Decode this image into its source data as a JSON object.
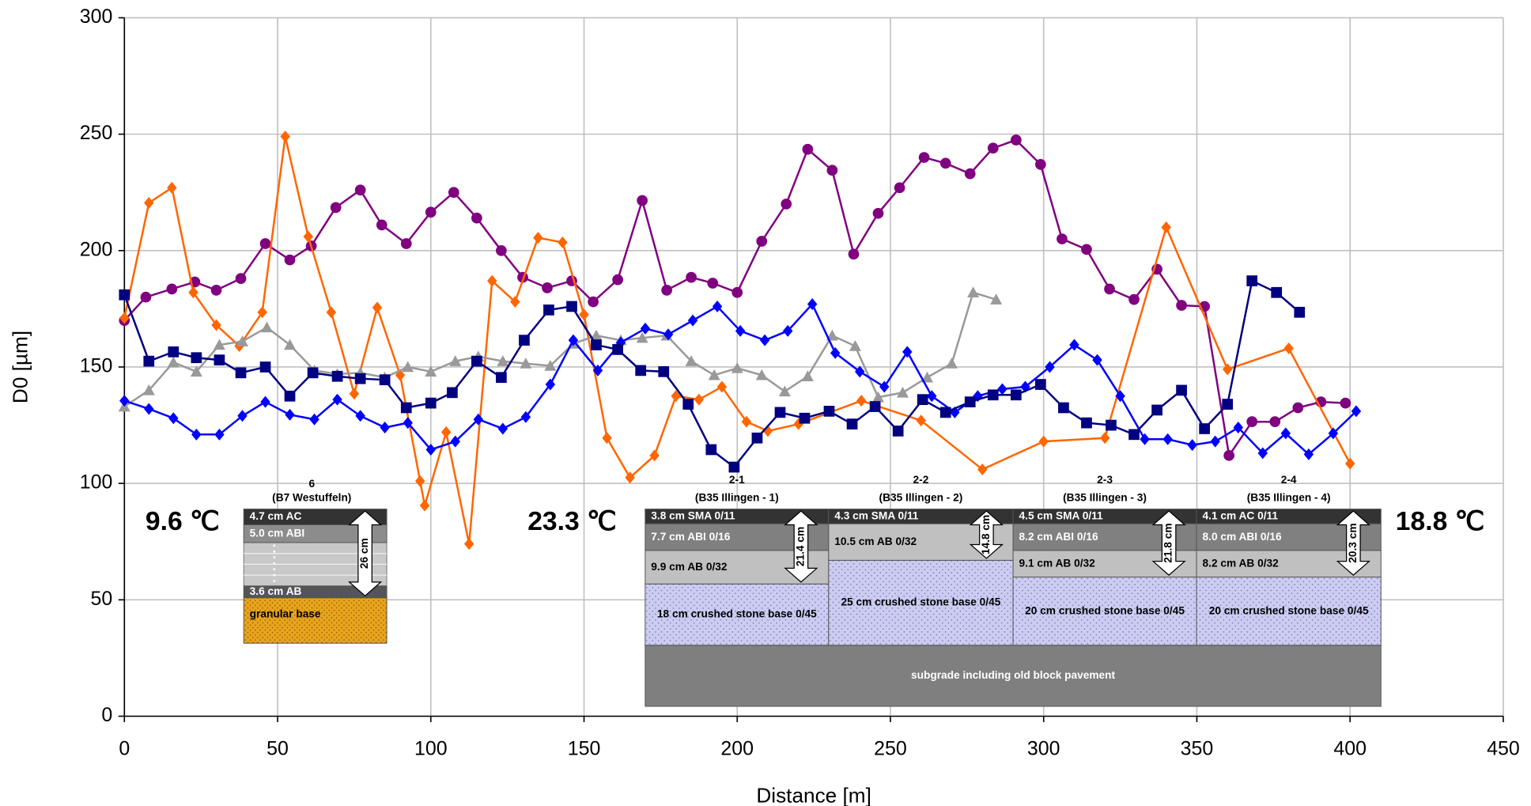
{
  "chart_data": {
    "type": "line",
    "x_label": "Distance [m]",
    "y_label": "D0 [µm]",
    "xlim": [
      0,
      450
    ],
    "ylim": [
      0,
      300
    ],
    "xticks": [
      0,
      50,
      100,
      150,
      200,
      250,
      300,
      350,
      400,
      450
    ],
    "yticks": [
      0,
      50,
      100,
      150,
      200,
      250,
      300
    ],
    "grid": true,
    "series": [
      {
        "color": "#800080",
        "marker": "circle",
        "x": [
          0,
          7,
          15.5,
          23,
          30,
          38,
          46,
          54,
          61,
          69,
          77,
          84,
          92,
          100,
          107.5,
          115,
          123,
          130,
          138,
          146,
          153,
          161,
          169,
          177,
          185,
          192,
          200,
          208,
          216,
          223,
          231,
          238,
          246,
          253,
          261,
          268,
          276,
          283.5,
          291,
          299,
          306,
          314,
          321.5,
          329.5,
          337,
          345,
          352.5,
          360.5,
          368,
          375.5,
          383,
          390.5,
          398.5
        ],
        "values": [
          170,
          180,
          183.5,
          186.5,
          183,
          188,
          203,
          196,
          202,
          218.5,
          226,
          211,
          203,
          216.5,
          225,
          214,
          200,
          188.5,
          184,
          187,
          178,
          187.5,
          221.5,
          183,
          188.5,
          186,
          182,
          204,
          220,
          243.5,
          234.5,
          198.5,
          216,
          227,
          240,
          237.5,
          233,
          244,
          247.5,
          237,
          205,
          200.5,
          183.5,
          179,
          192,
          176.5,
          176,
          112,
          126.5,
          126.5,
          132.5,
          135,
          134.5
        ]
      },
      {
        "color": "#ff6600",
        "marker": "diamond",
        "x": [
          0,
          8,
          15.5,
          22.5,
          30,
          37.5,
          45,
          52.5,
          60,
          67.5,
          75,
          82.5,
          90,
          96.5,
          98,
          105,
          112.5,
          120,
          127.5,
          135,
          143,
          150,
          157.5,
          165,
          173,
          180,
          187.5,
          195,
          203,
          210,
          220,
          240.5,
          260,
          280,
          300,
          320,
          340,
          360,
          380,
          400
        ],
        "values": [
          171,
          220.5,
          227,
          182,
          168,
          159,
          173.5,
          249,
          206,
          173.5,
          138.5,
          175.5,
          146.5,
          101,
          90.5,
          122,
          74,
          187,
          178,
          205.5,
          203.5,
          172.5,
          119.5,
          102.5,
          112,
          137.5,
          136,
          141.5,
          126.5,
          122.5,
          125.5,
          135.5,
          127,
          106,
          118,
          119.5,
          210,
          149,
          158,
          108.5
        ]
      },
      {
        "color": "#999999",
        "marker": "triangle",
        "x": [
          0,
          8,
          16,
          23.5,
          31,
          38.5,
          46.5,
          54,
          62,
          69.5,
          77,
          85,
          92.5,
          100,
          108,
          115.5,
          123.5,
          131,
          139,
          146.5,
          154,
          162,
          169,
          177,
          185,
          192.5,
          200,
          208,
          215.5,
          223,
          231,
          238.5,
          246,
          254,
          262,
          270,
          277,
          284.5
        ],
        "values": [
          133,
          140,
          152,
          148,
          159.5,
          161,
          167,
          159.5,
          148.5,
          147,
          147.5,
          145.5,
          150,
          148,
          152.5,
          154.5,
          152.5,
          151.5,
          150.5,
          160,
          163.5,
          161.5,
          162.5,
          163.5,
          152.5,
          146.5,
          149.5,
          146.5,
          139.5,
          146,
          163.5,
          159,
          137,
          139,
          145.5,
          151.5,
          182,
          179
        ]
      },
      {
        "color": "#0000ff",
        "marker": "diamond",
        "x": [
          0,
          8,
          16,
          23.5,
          31,
          38.5,
          46,
          54,
          62,
          69.5,
          77,
          85,
          92.5,
          100,
          108,
          115.5,
          123.5,
          131,
          139,
          146.5,
          154.5,
          162,
          170,
          177.5,
          185.5,
          193.5,
          201,
          209,
          216.5,
          224.5,
          232,
          240,
          248,
          255.5,
          263.5,
          271,
          278.5,
          286.5,
          294,
          302,
          310,
          317.5,
          325,
          333,
          340.5,
          348.5,
          356,
          363.5,
          371.5,
          379,
          386.5,
          394.5,
          402
        ],
        "values": [
          135.5,
          132,
          128,
          121,
          121,
          129,
          135,
          129.5,
          127.5,
          136,
          129,
          124,
          126,
          114.5,
          118,
          127.5,
          123.5,
          128.5,
          142.5,
          161.5,
          148.5,
          160.5,
          166.5,
          164,
          170,
          176,
          165.5,
          161.5,
          165.5,
          177,
          156,
          148,
          141.5,
          156.5,
          137.5,
          130.5,
          137.5,
          140.5,
          141.5,
          150,
          159.5,
          153,
          137.5,
          119,
          119,
          116.5,
          118,
          124,
          113,
          121.5,
          112.5,
          121.5,
          131
        ]
      },
      {
        "color": "#000080",
        "marker": "square",
        "x": [
          0,
          8,
          16,
          23.5,
          31,
          38,
          46,
          54,
          61.5,
          69.5,
          77,
          85,
          92,
          100,
          107,
          115,
          123,
          130.5,
          138.5,
          146,
          154,
          161,
          168.5,
          176,
          184,
          191.5,
          199,
          206.5,
          214,
          222,
          230,
          237.5,
          245,
          252.5,
          260.5,
          268,
          276,
          283.5,
          291,
          299,
          306.5,
          314,
          322,
          329.5,
          337,
          345,
          352.5,
          360,
          368,
          376,
          383.5
        ],
        "values": [
          181,
          152.5,
          156.5,
          154,
          153,
          147.5,
          150,
          137.5,
          147.5,
          146,
          145,
          144.5,
          132.5,
          134.5,
          139,
          152.5,
          145.5,
          161.5,
          174.5,
          176,
          159.5,
          157.5,
          148.5,
          148,
          134,
          114.5,
          107,
          119.5,
          130.5,
          128,
          131,
          125.5,
          133,
          122.5,
          136,
          130.5,
          135,
          138,
          138,
          142.5,
          132.5,
          126,
          125,
          121,
          131.5,
          140,
          123.5,
          134,
          187,
          182,
          173.5
        ]
      }
    ],
    "annotations": [
      "9.6 ℃",
      "23.3 ℃",
      "18.8 ℃"
    ],
    "pavement_sections": [
      {
        "title": "6",
        "subtitle": "(B7 Westuffeln)",
        "layers": [
          "4.7 cm AC",
          "5.0 cm ABI",
          "3.6 cm AB",
          "granular base"
        ],
        "total": "26 cm"
      },
      {
        "title": "2-1",
        "subtitle": "(B35 Illingen - 1)",
        "layers": [
          "3.8 cm  SMA 0/11",
          "7.7 cm  ABI 0/16",
          "9.9 cm  AB 0/32",
          "18 cm  crushed stone base 0/45"
        ],
        "total": "21.4 cm"
      },
      {
        "title": "2-2",
        "subtitle": "(B35 Illingen - 2)",
        "layers": [
          "4.3 cm  SMA 0/11",
          "10.5 cm  AB 0/32",
          "25 cm crushed stone base 0/45"
        ],
        "total": "14.8 cm"
      },
      {
        "title": "2-3",
        "subtitle": "(B35 Illingen - 3)",
        "layers": [
          "4.5 cm  SMA 0/11",
          "8.2 cm  ABI 0/16",
          "9.1 cm  AB 0/32",
          "20 cm  crushed stone base 0/45"
        ],
        "total": "21.8 cm"
      },
      {
        "title": "2-4",
        "subtitle": "(B35 Illingen - 4)",
        "layers": [
          "4.1 cm  AC 0/11",
          "8.0 cm  ABI 0/16",
          "8.2 cm  AB 0/32",
          "20 cm  crushed stone base 0/45"
        ],
        "total": "20.3 cm"
      }
    ],
    "subgrade": "subgrade including old block pavement"
  }
}
